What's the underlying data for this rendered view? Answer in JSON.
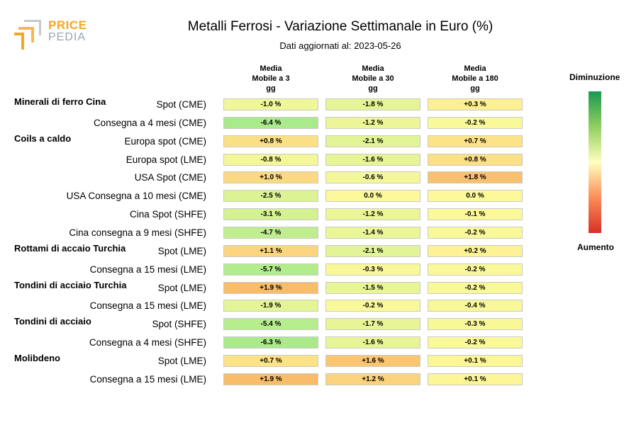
{
  "logo": {
    "word1": "PRICE",
    "word2": "PEDIA"
  },
  "title": "Metalli Ferrosi - Variazione Settimanale in Euro (%)",
  "subtitle": "Dati aggiornati al: 2023-05-26",
  "columns": [
    {
      "l1": "Media",
      "l2": "Mobile a 3",
      "l3": "gg"
    },
    {
      "l1": "Media",
      "l2": "Mobile a 30",
      "l3": "gg"
    },
    {
      "l1": "Media",
      "l2": "Mobile a 180",
      "l3": "gg"
    }
  ],
  "scale": {
    "top": "Diminuzione",
    "bottom": "Aumento",
    "colors": [
      "#1a9850",
      "#91cf60",
      "#ffffbf",
      "#fc8d59",
      "#d73027"
    ]
  },
  "chart_data": {
    "type": "heatmap",
    "title": "Metalli Ferrosi - Variazione Settimanale in Euro (%)",
    "subtitle": "Dati aggiornati al: 2023-05-26",
    "columns": [
      "Media Mobile a 3 gg",
      "Media Mobile a 30 gg",
      "Media Mobile a 180 gg"
    ],
    "rows": [
      {
        "group": "Minerali di ferro Cina",
        "label": "Spot (CME)",
        "values": [
          -1.0,
          -1.8,
          0.3
        ],
        "text": [
          "-1.0 %",
          "-1.8 %",
          "+0.3 %"
        ]
      },
      {
        "group": "",
        "label": "Consegna a 4 mesi (CME)",
        "values": [
          -6.4,
          -1.2,
          -0.2
        ],
        "text": [
          "-6.4 %",
          "-1.2 %",
          "-0.2 %"
        ]
      },
      {
        "group": "Coils a caldo",
        "label": "Europa spot (CME)",
        "values": [
          0.8,
          -2.1,
          0.7
        ],
        "text": [
          "+0.8 %",
          "-2.1 %",
          "+0.7 %"
        ]
      },
      {
        "group": "",
        "label": "Europa spot (LME)",
        "values": [
          -0.8,
          -1.6,
          0.8
        ],
        "text": [
          "-0.8 %",
          "-1.6 %",
          "+0.8 %"
        ]
      },
      {
        "group": "",
        "label": "USA Spot (CME)",
        "values": [
          1.0,
          -0.6,
          1.8
        ],
        "text": [
          "+1.0 %",
          "-0.6 %",
          "+1.8 %"
        ]
      },
      {
        "group": "",
        "label": "USA Consegna a 10 mesi (CME)",
        "values": [
          -2.5,
          0.0,
          0.0
        ],
        "text": [
          "-2.5 %",
          "0.0 %",
          "0.0 %"
        ]
      },
      {
        "group": "",
        "label": "Cina Spot (SHFE)",
        "values": [
          -3.1,
          -1.2,
          -0.1
        ],
        "text": [
          "-3.1 %",
          "-1.2 %",
          "-0.1 %"
        ]
      },
      {
        "group": "",
        "label": "Cina consegna a 9 mesi (SHFE)",
        "values": [
          -4.7,
          -1.4,
          -0.2
        ],
        "text": [
          "-4.7 %",
          "-1.4 %",
          "-0.2 %"
        ]
      },
      {
        "group": "Rottami di accaio Turchia",
        "label": "Spot (LME)",
        "values": [
          1.1,
          -2.1,
          0.2
        ],
        "text": [
          "+1.1 %",
          "-2.1 %",
          "+0.2 %"
        ]
      },
      {
        "group": "",
        "label": "Consegna a 15 mesi (LME)",
        "values": [
          -5.7,
          -0.3,
          -0.2
        ],
        "text": [
          "-5.7 %",
          "-0.3 %",
          "-0.2 %"
        ]
      },
      {
        "group": "Tondini di acciaio Turchia",
        "label": "Spot (LME)",
        "values": [
          1.9,
          -1.5,
          -0.2
        ],
        "text": [
          "+1.9 %",
          "-1.5 %",
          "-0.2 %"
        ]
      },
      {
        "group": "",
        "label": "Consegna a 15 mesi (LME)",
        "values": [
          -1.9,
          -0.2,
          -0.4
        ],
        "text": [
          "-1.9 %",
          "-0.2 %",
          "-0.4 %"
        ]
      },
      {
        "group": "Tondini di acciaio",
        "label": "Spot (SHFE)",
        "values": [
          -5.4,
          -1.7,
          -0.3
        ],
        "text": [
          "-5.4 %",
          "-1.7 %",
          "-0.3 %"
        ]
      },
      {
        "group": "",
        "label": "Consegna a 4 mesi (SHFE)",
        "values": [
          -6.3,
          -1.6,
          -0.2
        ],
        "text": [
          "-6.3 %",
          "-1.6 %",
          "-0.2 %"
        ]
      },
      {
        "group": "Molibdeno",
        "label": "Spot (LME)",
        "values": [
          0.7,
          1.6,
          0.1
        ],
        "text": [
          "+0.7 %",
          "+1.6 %",
          "+0.1 %"
        ]
      },
      {
        "group": "",
        "label": "Consegna a 15 mesi (LME)",
        "values": [
          1.9,
          1.2,
          0.1
        ],
        "text": [
          "+1.9 %",
          "+1.2 %",
          "+0.1 %"
        ]
      }
    ]
  }
}
